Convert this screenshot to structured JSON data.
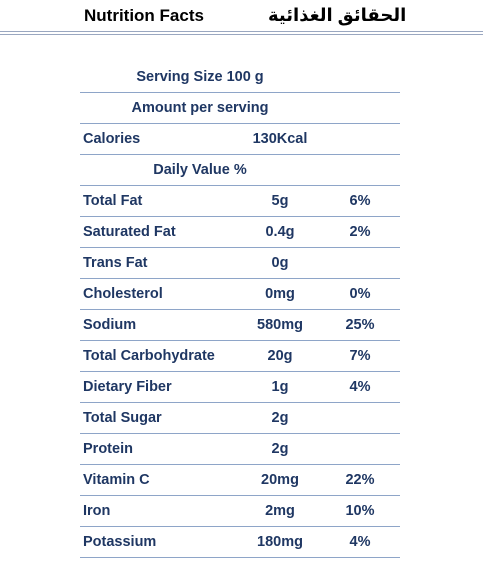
{
  "header": {
    "title_en": "Nutrition Facts",
    "title_ar": "الحقائق الغذائية"
  },
  "panel": {
    "serving_size": "Serving Size 100 g",
    "amount_per_serving": "Amount per serving",
    "calories_label": "Calories",
    "calories_value": "130Kcal",
    "daily_value_label": "Daily Value %"
  },
  "nutrients": [
    {
      "name": "Total Fat",
      "amount": "5g",
      "dv": "6%"
    },
    {
      "name": "Saturated Fat",
      "amount": "0.4g",
      "dv": "2%"
    },
    {
      "name": "Trans Fat",
      "amount": "0g",
      "dv": ""
    },
    {
      "name": "Cholesterol",
      "amount": "0mg",
      "dv": "0%"
    },
    {
      "name": "Sodium",
      "amount": "580mg",
      "dv": "25%"
    },
    {
      "name": "Total Carbohydrate",
      "amount": "20g",
      "dv": "7%"
    },
    {
      "name": "Dietary Fiber",
      "amount": "1g",
      "dv": "4%"
    },
    {
      "name": "Total Sugar",
      "amount": "2g",
      "dv": ""
    },
    {
      "name": "Protein",
      "amount": "2g",
      "dv": ""
    },
    {
      "name": "Vitamin C",
      "amount": "20mg",
      "dv": "22%"
    },
    {
      "name": "Iron",
      "amount": "2mg",
      "dv": "10%"
    },
    {
      "name": "Potassium",
      "amount": "180mg",
      "dv": "4%"
    }
  ],
  "colors": {
    "text": "#1f3763",
    "row_rule": "#8ea5c8",
    "header_rule": "#9aa7c0"
  }
}
